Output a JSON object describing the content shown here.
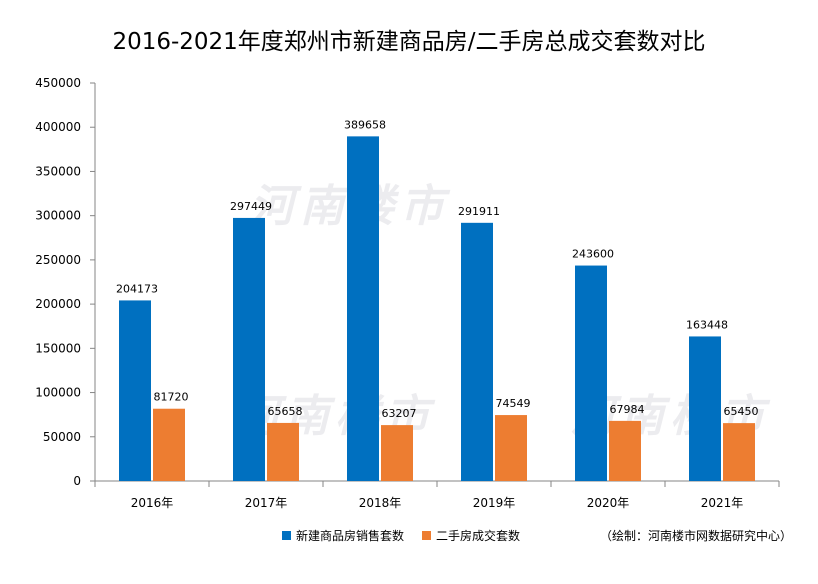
{
  "title": "2016-2021年度郑州市新建商品房/二手房总成交套数对比",
  "watermark": "河南楼市",
  "source_note": "（绘制：河南楼市网数据研究中心）",
  "colors": {
    "series1": "#0070C0",
    "series2": "#ED7D31",
    "axis": "#868686",
    "grid": "#A6A6A6"
  },
  "chart_data": {
    "type": "bar",
    "title": "2016-2021年度郑州市新建商品房/二手房总成交套数对比",
    "categories": [
      "2016年",
      "2017年",
      "2018年",
      "2019年",
      "2020年",
      "2021年"
    ],
    "series": [
      {
        "name": "新建商品房销售套数",
        "values": [
          204173,
          297449,
          389658,
          291911,
          243600,
          163448
        ]
      },
      {
        "name": "二手房成交套数",
        "values": [
          81720,
          65658,
          63207,
          74549,
          67984,
          65450
        ]
      }
    ],
    "ylim": [
      0,
      450000
    ],
    "yticks": [
      0,
      50000,
      100000,
      150000,
      200000,
      250000,
      300000,
      350000,
      400000,
      450000
    ],
    "legend": "bottom",
    "grid": false
  }
}
